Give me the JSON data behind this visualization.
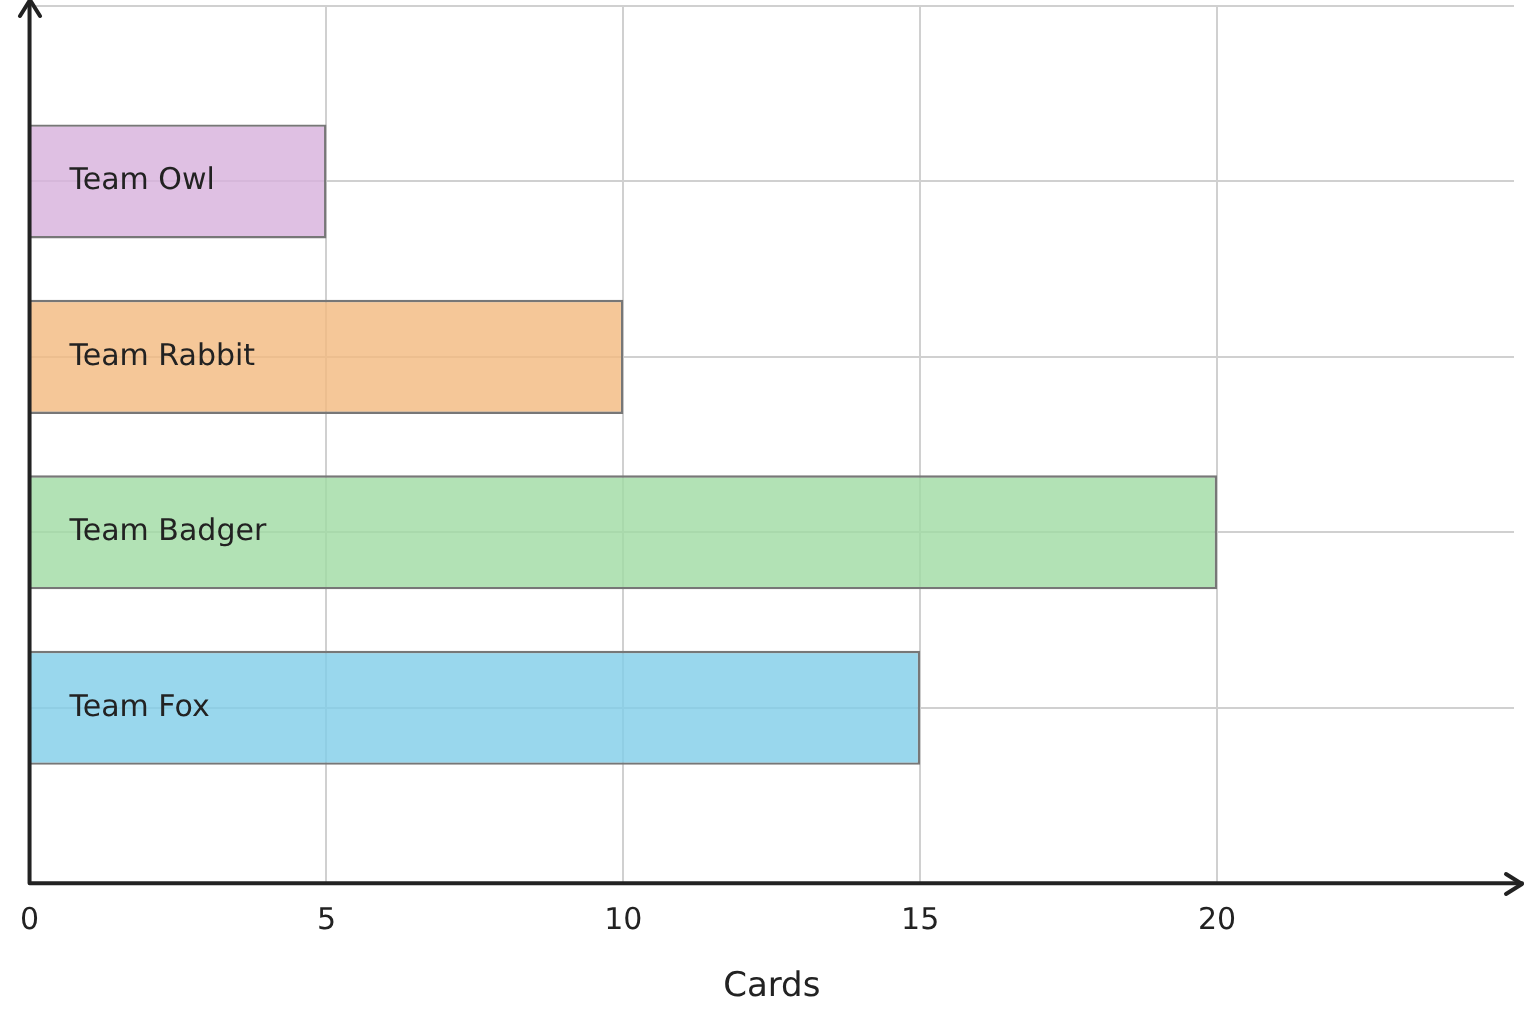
{
  "chart_data": {
    "type": "bar",
    "orientation": "horizontal",
    "xlabel": "Cards",
    "categories": [
      "Team Owl",
      "Team Rabbit",
      "Team Badger",
      "Team Fox"
    ],
    "values": [
      5,
      10,
      20,
      15
    ],
    "colors": [
      "#d7b0dc",
      "#f2b97e",
      "#9fdba3",
      "#80cde8"
    ],
    "xlim": [
      0,
      25
    ],
    "xticks": [
      0,
      5,
      10,
      15,
      20
    ],
    "grid": true,
    "legend": false
  }
}
